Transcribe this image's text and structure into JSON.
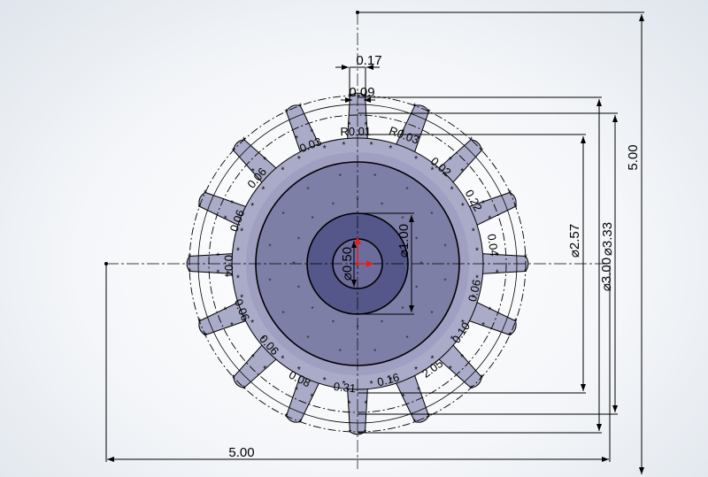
{
  "drawing": {
    "dims": {
      "tooth_width": "0.17",
      "tip_width": "0.09",
      "root_dia": "⌀2.57",
      "outer_dia": "⌀3.33",
      "pitch_dia": "⌀3.00",
      "height": "5.00",
      "width": "5.00",
      "hub_dia": "⌀1.00",
      "bore_dia": "⌀0.50"
    },
    "clutter_labels": [
      "0.03",
      "R0.01",
      "R0.03",
      "0.02",
      "0.22",
      "0.04",
      "0.06",
      "0.10",
      "2.05",
      "0.16",
      "0.31",
      "0.08",
      "0.06",
      "0.06",
      "0.04",
      "0.06",
      "0.06"
    ],
    "colors": {
      "gear_fill": "#a9abc8",
      "hub_fill": "#7e7fa7",
      "center_fill": "#55568a",
      "bore_fill": "#6c6d9c",
      "origin_arrow": "#e0201e"
    }
  }
}
